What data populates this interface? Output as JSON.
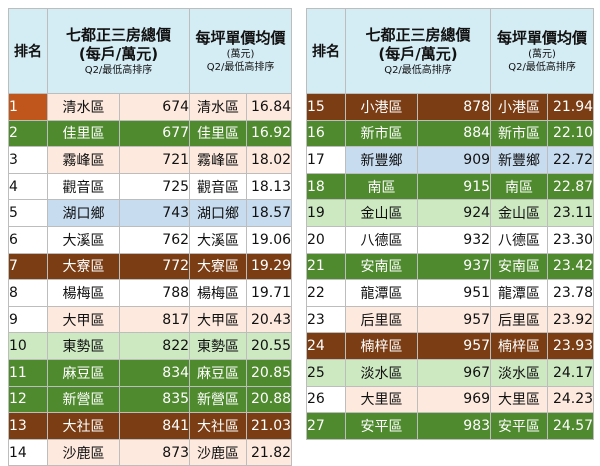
{
  "headers": {
    "rank": "排名",
    "total_line1": "七都正三房總價",
    "total_line2": "(每戶/萬元)",
    "total_sub": "Q2/最低高排序",
    "unit_line1": "每坪單價均價",
    "unit_line2": "(萬元)",
    "unit_sub": "Q2/最低高排序"
  },
  "left_rows": [
    {
      "rank": "1",
      "name": "清水區",
      "total": "674",
      "name2": "清水區",
      "unit": "16.84",
      "style": "peach first"
    },
    {
      "rank": "2",
      "name": "佳里區",
      "total": "677",
      "name2": "佳里區",
      "unit": "16.92",
      "style": "green"
    },
    {
      "rank": "3",
      "name": "霧峰區",
      "total": "721",
      "name2": "霧峰區",
      "unit": "18.02",
      "style": "peach"
    },
    {
      "rank": "4",
      "name": "觀音區",
      "total": "725",
      "name2": "觀音區",
      "unit": "18.13",
      "style": "white"
    },
    {
      "rank": "5",
      "name": "湖口鄉",
      "total": "743",
      "name2": "湖口鄉",
      "unit": "18.57",
      "style": "blue"
    },
    {
      "rank": "6",
      "name": "大溪區",
      "total": "762",
      "name2": "大溪區",
      "unit": "19.06",
      "style": "white"
    },
    {
      "rank": "7",
      "name": "大寮區",
      "total": "772",
      "name2": "大寮區",
      "unit": "19.29",
      "style": "brown"
    },
    {
      "rank": "8",
      "name": "楊梅區",
      "total": "788",
      "name2": "楊梅區",
      "unit": "19.71",
      "style": "white"
    },
    {
      "rank": "9",
      "name": "大甲區",
      "total": "817",
      "name2": "大甲區",
      "unit": "20.43",
      "style": "peach"
    },
    {
      "rank": "10",
      "name": "東勢區",
      "total": "822",
      "name2": "東勢區",
      "unit": "20.55",
      "style": "peach lgreen"
    },
    {
      "rank": "11",
      "name": "麻豆區",
      "total": "834",
      "name2": "麻豆區",
      "unit": "20.85",
      "style": "green"
    },
    {
      "rank": "12",
      "name": "新營區",
      "total": "835",
      "name2": "新營區",
      "unit": "20.88",
      "style": "green"
    },
    {
      "rank": "13",
      "name": "大社區",
      "total": "841",
      "name2": "大社區",
      "unit": "21.03",
      "style": "brown"
    },
    {
      "rank": "14",
      "name": "沙鹿區",
      "total": "873",
      "name2": "沙鹿區",
      "unit": "21.82",
      "style": "peach"
    }
  ],
  "right_rows": [
    {
      "rank": "15",
      "name": "小港區",
      "total": "878",
      "name2": "小港區",
      "unit": "21.94",
      "style": "brown"
    },
    {
      "rank": "16",
      "name": "新市區",
      "total": "884",
      "name2": "新市區",
      "unit": "22.10",
      "style": "green"
    },
    {
      "rank": "17",
      "name": "新豐鄉",
      "total": "909",
      "name2": "新豐鄉",
      "unit": "22.72",
      "style": "blue"
    },
    {
      "rank": "18",
      "name": "南區",
      "total": "915",
      "name2": "南區",
      "unit": "22.87",
      "style": "green"
    },
    {
      "rank": "19",
      "name": "金山區",
      "total": "924",
      "name2": "金山區",
      "unit": "23.11",
      "style": "lgreen"
    },
    {
      "rank": "20",
      "name": "八德區",
      "total": "932",
      "name2": "八德區",
      "unit": "23.30",
      "style": "white"
    },
    {
      "rank": "21",
      "name": "安南區",
      "total": "937",
      "name2": "安南區",
      "unit": "23.42",
      "style": "green"
    },
    {
      "rank": "22",
      "name": "龍潭區",
      "total": "951",
      "name2": "龍潭區",
      "unit": "23.78",
      "style": "white"
    },
    {
      "rank": "23",
      "name": "后里區",
      "total": "957",
      "name2": "后里區",
      "unit": "23.92",
      "style": "peach"
    },
    {
      "rank": "24",
      "name": "楠梓區",
      "total": "957",
      "name2": "楠梓區",
      "unit": "23.93",
      "style": "brown"
    },
    {
      "rank": "25",
      "name": "淡水區",
      "total": "967",
      "name2": "淡水區",
      "unit": "24.17",
      "style": "lgreen"
    },
    {
      "rank": "26",
      "name": "大里區",
      "total": "969",
      "name2": "大里區",
      "unit": "24.23",
      "style": "peach"
    },
    {
      "rank": "27",
      "name": "安平區",
      "total": "983",
      "name2": "安平區",
      "unit": "24.57",
      "style": "green"
    }
  ]
}
